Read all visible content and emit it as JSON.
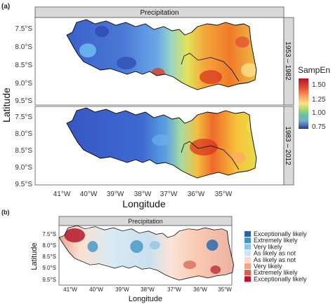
{
  "panel_a": {
    "tag": "(a)",
    "strip_top": "Precipitation",
    "facets": [
      "1953 – 1982",
      "1983 – 2012"
    ],
    "y_ticks": [
      "7.5°S",
      "8.0°S",
      "8.5°S",
      "9.0°S",
      "9.5°S"
    ],
    "x_ticks": [
      "41°W",
      "40°W",
      "39°W",
      "38°W",
      "37°W",
      "36°W",
      "35°W"
    ],
    "xlabel": "Longitude",
    "ylabel": "Latitude",
    "colorbar": {
      "title": "SampEn",
      "ticks": [
        "1.50",
        "1.25",
        "1.00",
        "0.75"
      ],
      "colors": [
        "#b2182b",
        "#e34a33",
        "#fdae61",
        "#fee08b",
        "#66bd63",
        "#1a9850",
        "#74add1",
        "#4575b4",
        "#313695"
      ]
    }
  },
  "panel_b": {
    "tag": "(b)",
    "strip_top": "Precipitation",
    "y_ticks": [
      "7.5°S",
      "8.0°S",
      "8.5°S",
      "9.0°S",
      "9.5°S"
    ],
    "x_ticks": [
      "41°W",
      "40°W",
      "39°W",
      "38°W",
      "37°W",
      "36°W",
      "35°W"
    ],
    "xlabel": "Longitude",
    "ylabel": "Latitude",
    "legend": [
      {
        "label": "Exceptionally likely",
        "color": "#2166ac"
      },
      {
        "label": "Extremely likely",
        "color": "#4393c3"
      },
      {
        "label": "Very likely",
        "color": "#92c5de"
      },
      {
        "label": "As likely as not",
        "color": "#d1e5f0"
      },
      {
        "label": "As likely as not",
        "color": "#fddbc7"
      },
      {
        "label": "Very likely",
        "color": "#f4a582"
      },
      {
        "label": "Extremely likely",
        "color": "#d6604d"
      },
      {
        "label": "Exceptionally likely",
        "color": "#b2182b"
      }
    ]
  }
}
